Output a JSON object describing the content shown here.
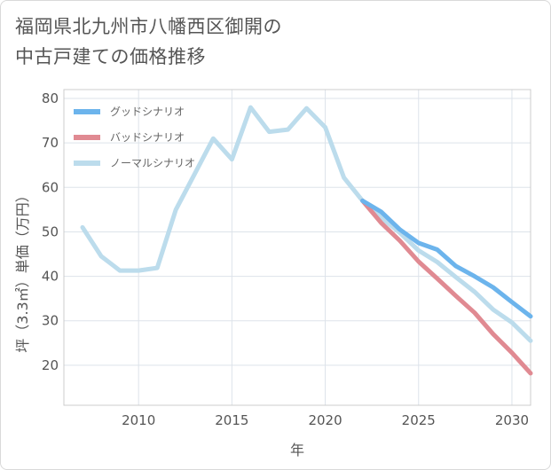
{
  "title_line1": "福岡県北九州市八幡西区御開の",
  "title_line2": "中古戸建ての価格推移",
  "chart_data": {
    "type": "line",
    "xlabel": "年",
    "ylabel": "坪（3.3㎡）単価（万円）",
    "xlim": [
      2006,
      2031
    ],
    "ylim": [
      11,
      82
    ],
    "x_ticks": [
      2010,
      2015,
      2020,
      2025,
      2030
    ],
    "y_ticks": [
      20,
      30,
      40,
      50,
      60,
      70,
      80
    ],
    "grid": true,
    "legend_position": "top-left",
    "series": [
      {
        "name": "グッドシナリオ",
        "color": "#6cb4ec",
        "x": [
          2022,
          2023,
          2024,
          2025,
          2026,
          2027,
          2028,
          2029,
          2030,
          2031
        ],
        "y": [
          57,
          54.5,
          50.5,
          47.5,
          46,
          42.3,
          40,
          37.5,
          34.2,
          31
        ]
      },
      {
        "name": "バッドシナリオ",
        "color": "#e08a92",
        "x": [
          2022,
          2023,
          2024,
          2025,
          2026,
          2027,
          2028,
          2029,
          2030,
          2031
        ],
        "y": [
          57,
          52,
          48,
          43.3,
          39.5,
          35.6,
          31.8,
          27,
          22.8,
          18.2
        ]
      },
      {
        "name": "ノーマルシナリオ",
        "color": "#bcdcec",
        "x": [
          2007,
          2008,
          2009,
          2010,
          2011,
          2012,
          2013,
          2014,
          2015,
          2016,
          2017,
          2018,
          2019,
          2020,
          2021,
          2022,
          2023,
          2024,
          2025,
          2026,
          2027,
          2028,
          2029,
          2030,
          2031
        ],
        "y": [
          51,
          44.5,
          41.3,
          41.3,
          41.9,
          55,
          63,
          71,
          66.3,
          78,
          72.5,
          73,
          77.8,
          73.5,
          62.2,
          57,
          53.2,
          49.8,
          45.8,
          43.2,
          39.8,
          36.5,
          32.5,
          29.6,
          25.5
        ]
      }
    ]
  }
}
